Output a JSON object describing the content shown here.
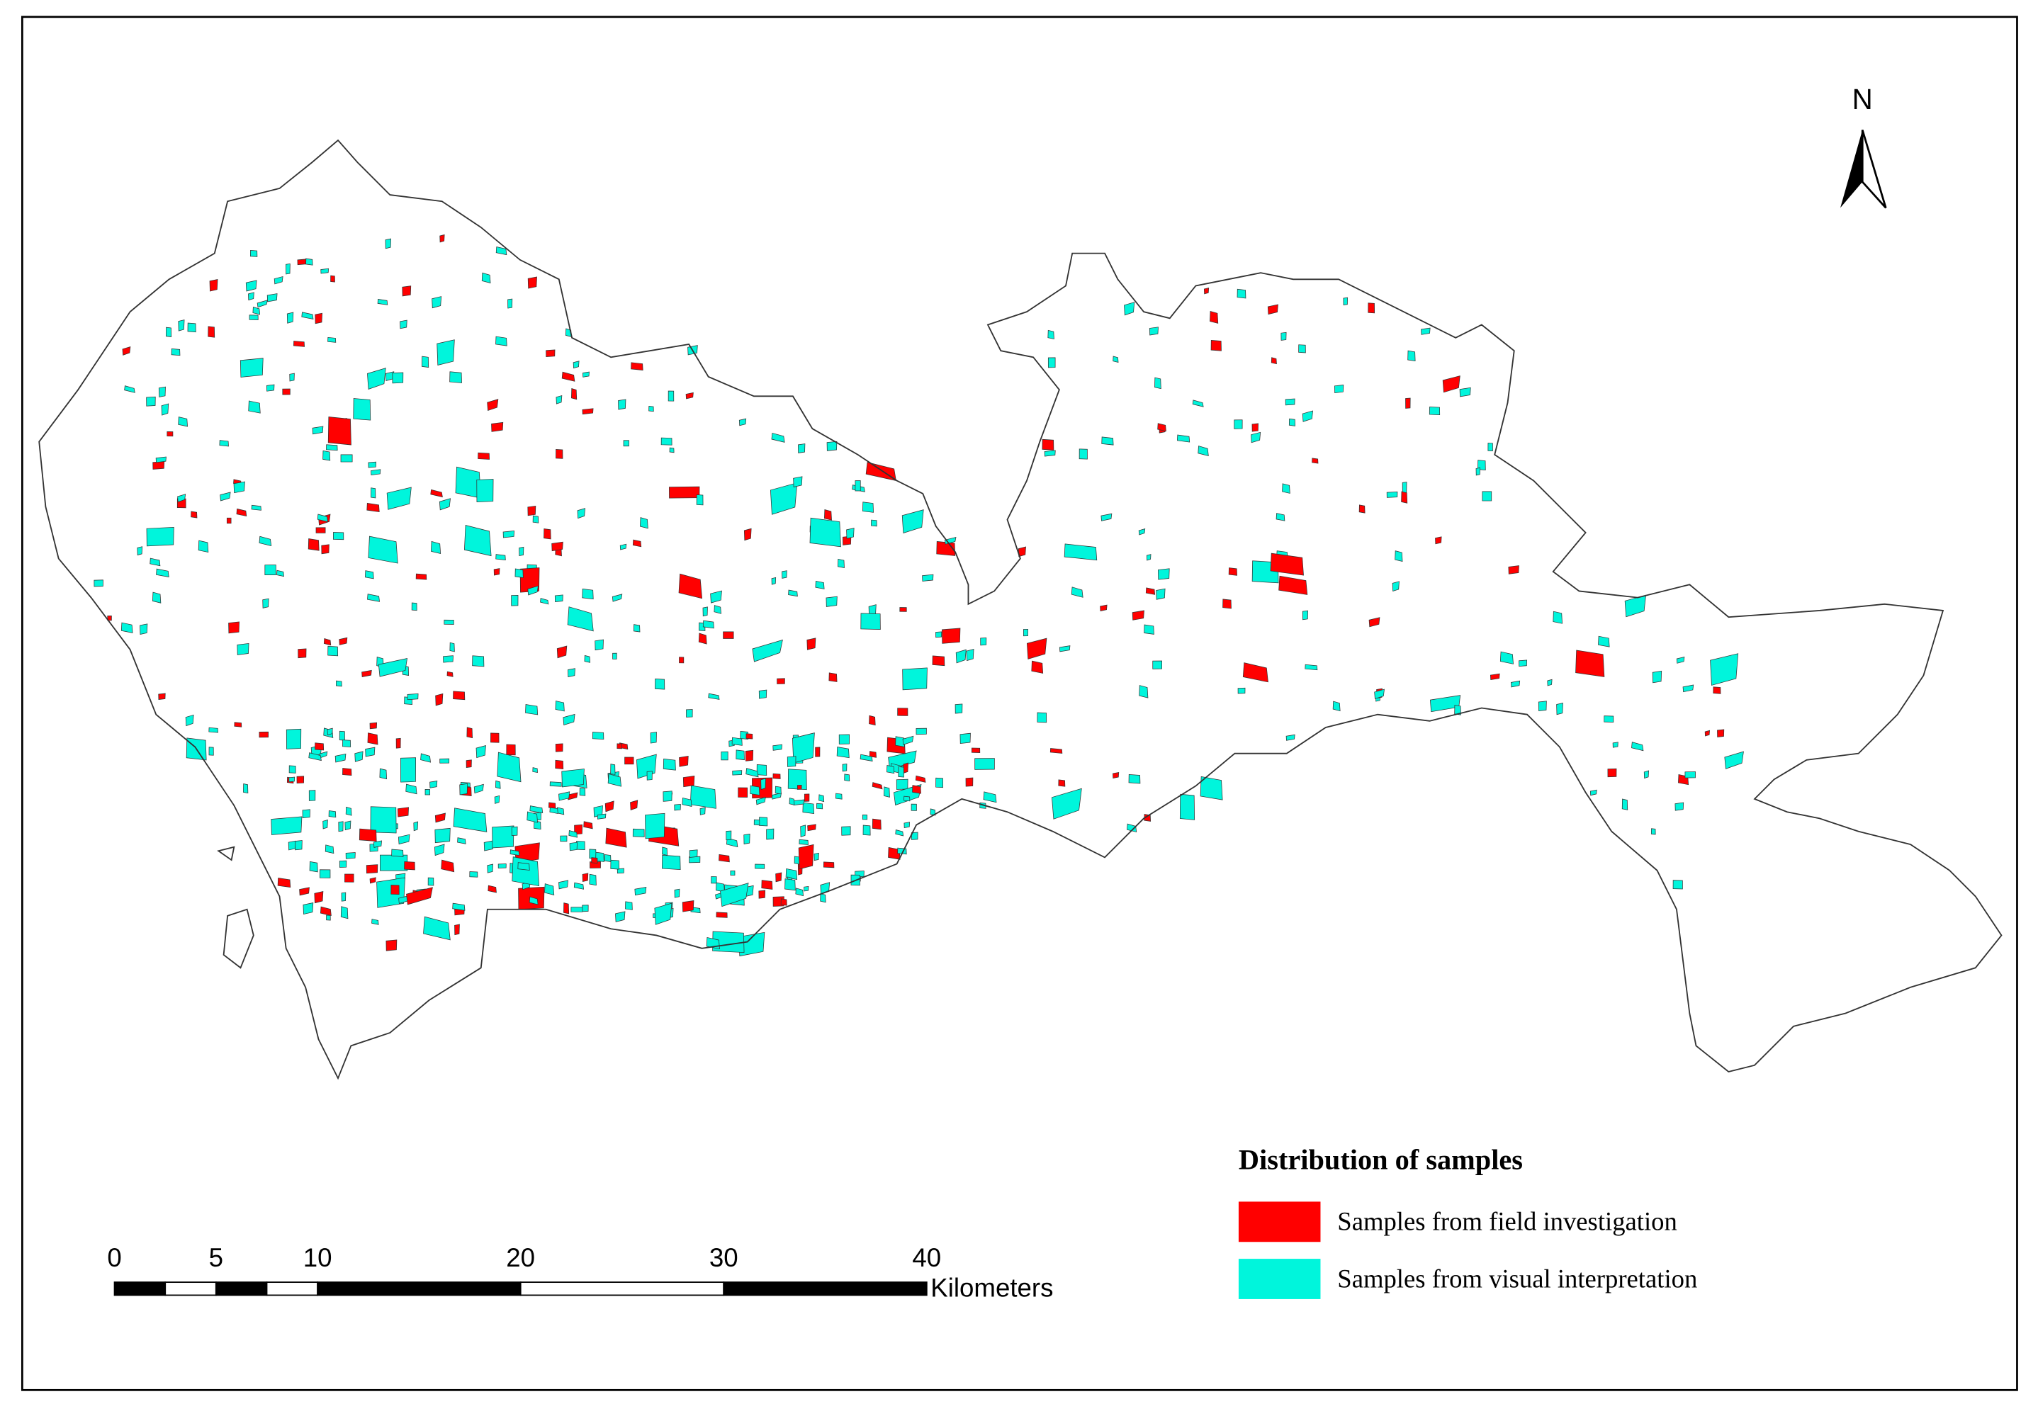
{
  "north_arrow": {
    "label": "N"
  },
  "legend": {
    "title": "Distribution of samples",
    "items": [
      {
        "label": "Samples from field investigation",
        "color": "#ff0000"
      },
      {
        "label": "Samples from visual interpretation",
        "color": "#00f5dc"
      }
    ]
  },
  "scale_bar": {
    "ticks": [
      0,
      5,
      10,
      20,
      30,
      40
    ],
    "unit": "Kilometers"
  }
}
